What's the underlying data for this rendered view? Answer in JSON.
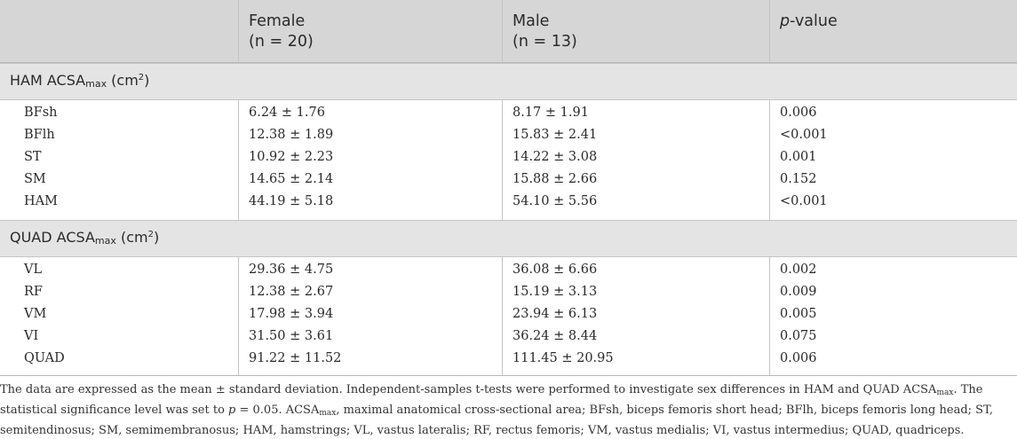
{
  "header": {
    "col0": "",
    "female": "Female\n(n = 20)",
    "male": "Male\n(n = 13)",
    "pvalue_p": "p",
    "pvalue_rest": "-value"
  },
  "sections": [
    {
      "label_pre": "HAM ACSA",
      "label_sub": "max",
      "label_mid": " (cm",
      "label_sup": "2",
      "label_post": ")",
      "rows": [
        {
          "name": "BFsh",
          "female": "6.24 ± 1.76",
          "male": "8.17 ± 1.91",
          "p": "0.006"
        },
        {
          "name": "BFlh",
          "female": "12.38 ± 1.89",
          "male": "15.83 ± 2.41",
          "p": "<0.001"
        },
        {
          "name": "ST",
          "female": "10.92 ± 2.23",
          "male": "14.22 ± 3.08",
          "p": "0.001"
        },
        {
          "name": "SM",
          "female": "14.65 ± 2.14",
          "male": "15.88 ± 2.66",
          "p": "0.152"
        },
        {
          "name": "HAM",
          "female": "44.19 ± 5.18",
          "male": "54.10 ± 5.56",
          "p": "<0.001"
        }
      ]
    },
    {
      "label_pre": "QUAD ACSA",
      "label_sub": "max",
      "label_mid": " (cm",
      "label_sup": "2",
      "label_post": ")",
      "rows": [
        {
          "name": "VL",
          "female": "29.36 ± 4.75",
          "male": "36.08 ± 6.66",
          "p": "0.002"
        },
        {
          "name": "RF",
          "female": "12.38 ± 2.67",
          "male": "15.19 ± 3.13",
          "p": "0.009"
        },
        {
          "name": "VM",
          "female": "17.98 ± 3.94",
          "male": "23.94 ± 6.13",
          "p": "0.005"
        },
        {
          "name": "VI",
          "female": "31.50 ± 3.61",
          "male": "36.24 ± 8.44",
          "p": "0.075"
        },
        {
          "name": "QUAD",
          "female": "91.22 ± 11.52",
          "male": "111.45 ± 20.95",
          "p": "0.006"
        }
      ]
    }
  ],
  "footnote": {
    "part1": "The data are expressed as the mean ± standard deviation. Independent-samples t-tests were performed to investigate sex differences in HAM and QUAD ACSA",
    "sub1": "max",
    "part2": ". The statistical significance level was set to ",
    "p_italic": "p",
    "part3": " = 0.05. ACSA",
    "sub2": "max",
    "part4": ", maximal anatomical cross-sectional area; BFsh, biceps femoris short head; BFlh, biceps femoris long head; ST, semitendinosus; SM, semimembranosus; HAM, hamstrings; VL, vastus lateralis; RF, rectus femoris; VM, vastus medialis; VI, vastus intermedius; QUAD, quadriceps."
  }
}
